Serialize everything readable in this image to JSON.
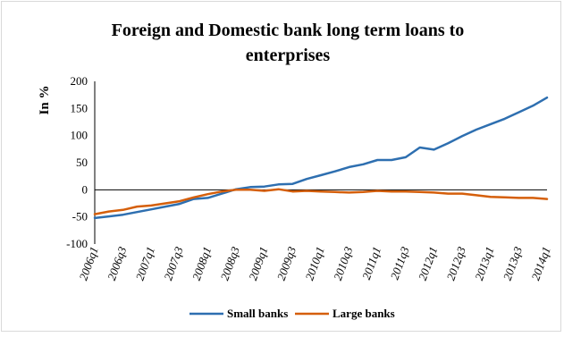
{
  "chart_data": {
    "type": "line",
    "title_line1": "Foreign and Domestic bank long term loans to",
    "title_line2": "enterprises",
    "ylabel": "In %",
    "xlabel": "",
    "ylim": [
      -100,
      200
    ],
    "yticks": [
      200,
      150,
      100,
      50,
      0,
      -50,
      -100
    ],
    "grid": false,
    "legend_position": "bottom",
    "x": [
      "2006q1",
      "2006q2",
      "2006q3",
      "2006q4",
      "2007q1",
      "2007q2",
      "2007q3",
      "2007q4",
      "2008q1",
      "2008q2",
      "2008q3",
      "2008q4",
      "2009q1",
      "2009q2",
      "2009q3",
      "2009q4",
      "2010q1",
      "2010q2",
      "2010q3",
      "2010q4",
      "2011q1",
      "2011q2",
      "2011q3",
      "2011q4",
      "2012q1",
      "2012q2",
      "2012q3",
      "2012q4",
      "2013q1",
      "2013q2",
      "2013q3",
      "2013q4",
      "2014q1"
    ],
    "x_tick_labels": [
      "2006q1",
      "2006q3",
      "2007q1",
      "2007q3",
      "2008q1",
      "2008q3",
      "2009q1",
      "2009q3",
      "2010q1",
      "2010q3",
      "2011q1",
      "2011q3",
      "2012q1",
      "2012q3",
      "2013q1",
      "2013q3",
      "2014q1"
    ],
    "series": [
      {
        "name": "Small banks",
        "color": "#2e6fb0",
        "values": [
          -52,
          -49,
          -46,
          -41,
          -36,
          -31,
          -26,
          -17,
          -15,
          -7,
          1,
          5,
          6,
          10,
          11,
          20,
          27,
          34,
          42,
          47,
          55,
          55,
          60,
          78,
          74,
          86,
          99,
          111,
          121,
          131,
          143,
          155,
          170
        ]
      },
      {
        "name": "Large banks",
        "color": "#d55f0b",
        "values": [
          -45,
          -40,
          -37,
          -31,
          -29,
          -25,
          -21,
          -14,
          -8,
          -3,
          0,
          0,
          -2,
          1,
          -3,
          -2,
          -3,
          -4,
          -5,
          -4,
          -2,
          -3,
          -3,
          -4,
          -5,
          -7,
          -7,
          -10,
          -13,
          -14,
          -15,
          -15,
          -17
        ]
      }
    ]
  }
}
